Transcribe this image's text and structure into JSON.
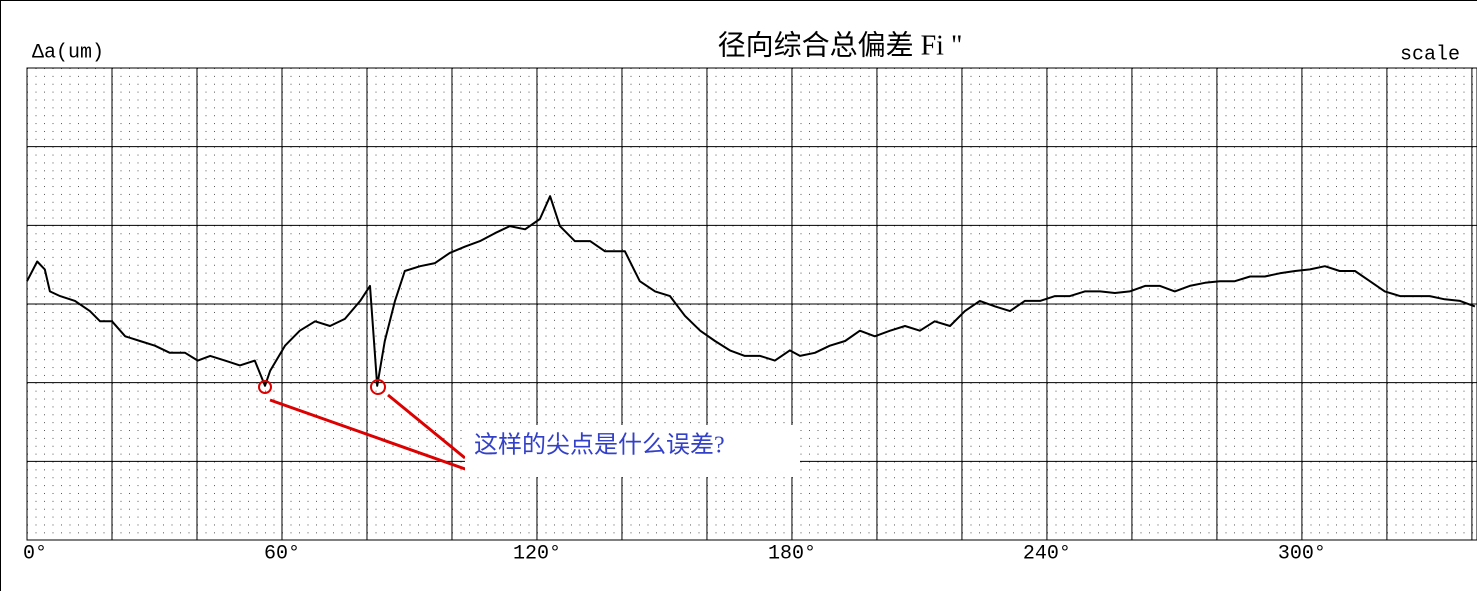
{
  "chart_data": {
    "type": "line",
    "title": "径向综合总偏差 Fi \"",
    "y_label": "Δa(um)",
    "scale_label": "scale",
    "annotation": "这样的尖点是什么误差?",
    "color": "#000000",
    "grid": true,
    "xlim": [
      0,
      341.2
    ],
    "ylim": [
      -3,
      3
    ],
    "xticks": [
      {
        "value": 0,
        "label": "0°"
      },
      {
        "value": 60,
        "label": "60°"
      },
      {
        "value": 120,
        "label": "120°"
      },
      {
        "value": 180,
        "label": "180°"
      },
      {
        "value": 240,
        "label": "240°"
      },
      {
        "value": 300,
        "label": "300°"
      }
    ],
    "minor_xticks": [
      20,
      40,
      80,
      100,
      140,
      160,
      200,
      220,
      260,
      280,
      320,
      340
    ],
    "yticks": [
      -3,
      -2,
      -1,
      0,
      1,
      2,
      3
    ],
    "x": [
      0,
      2.4,
      4.2,
      5.4,
      7.8,
      11.3,
      14.8,
      17.2,
      20,
      23.1,
      26.6,
      30.1,
      33.6,
      37.2,
      40.2,
      43.1,
      46.6,
      50.1,
      53.6,
      56,
      57.2,
      60.7,
      64.2,
      67.8,
      71.3,
      74.8,
      78.4,
      80.7,
      82.4,
      84.2,
      86.6,
      88.9,
      92.5,
      96,
      99.5,
      103.1,
      106.6,
      110.1,
      113.6,
      117.2,
      120.7,
      123.1,
      125.4,
      128.9,
      132.5,
      136,
      140.7,
      144.2,
      147.8,
      151.3,
      154.8,
      158.4,
      161.9,
      165.4,
      168.9,
      172.5,
      176,
      179.5,
      181.9,
      185.4,
      188.9,
      192.5,
      196,
      199.5,
      203.1,
      206.6,
      210.1,
      213.6,
      217.2,
      220.7,
      224.2,
      227.8,
      231.3,
      234.8,
      238.4,
      241.9,
      245.4,
      248.9,
      252.5,
      256,
      259.5,
      263.1,
      266.6,
      270.1,
      273.6,
      277.2,
      280.7,
      284.2,
      287.8,
      291.3,
      294.8,
      298.4,
      301.9,
      305.4,
      308.9,
      312.5,
      316,
      319.5,
      323.1,
      326.6,
      330.1,
      333.6,
      337.2,
      340.7
    ],
    "values": [
      0.29,
      0.54,
      0.44,
      0.16,
      0.1,
      0.04,
      -0.09,
      -0.22,
      -0.22,
      -0.41,
      -0.47,
      -0.53,
      -0.62,
      -0.62,
      -0.72,
      -0.66,
      -0.72,
      -0.78,
      -0.72,
      -1.04,
      -0.85,
      -0.53,
      -0.34,
      -0.22,
      -0.28,
      -0.19,
      0.04,
      0.23,
      -1.04,
      -0.47,
      0.04,
      0.42,
      0.48,
      0.52,
      0.65,
      0.73,
      0.8,
      0.9,
      0.99,
      0.95,
      1.08,
      1.37,
      0.99,
      0.8,
      0.8,
      0.67,
      0.67,
      0.29,
      0.16,
      0.1,
      -0.15,
      -0.34,
      -0.47,
      -0.59,
      -0.66,
      -0.66,
      -0.72,
      -0.59,
      -0.66,
      -0.62,
      -0.53,
      -0.47,
      -0.34,
      -0.41,
      -0.34,
      -0.28,
      -0.34,
      -0.22,
      -0.28,
      -0.09,
      0.04,
      -0.03,
      -0.09,
      0.04,
      0.04,
      0.1,
      0.1,
      0.16,
      0.16,
      0.14,
      0.16,
      0.23,
      0.23,
      0.16,
      0.23,
      0.27,
      0.29,
      0.29,
      0.35,
      0.35,
      0.39,
      0.42,
      0.44,
      0.48,
      0.42,
      0.42,
      0.29,
      0.16,
      0.1,
      0.1,
      0.1,
      0.06,
      0.04,
      -0.03
    ]
  }
}
